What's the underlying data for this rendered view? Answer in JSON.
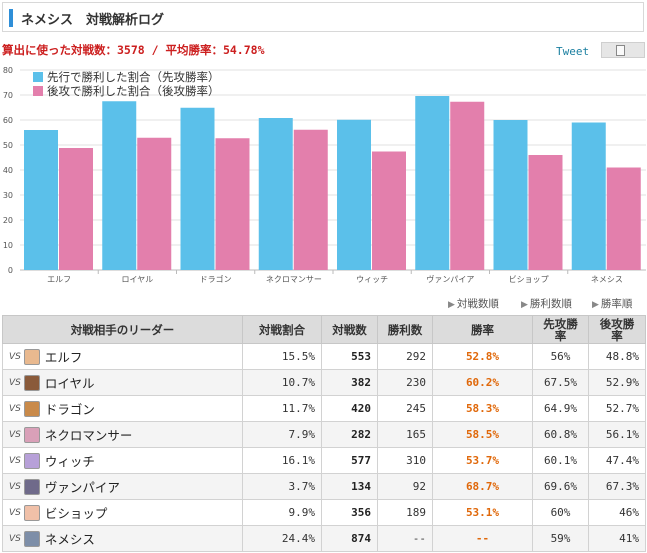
{
  "header": {
    "title": "ネメシス　対戦解析ログ"
  },
  "summary": {
    "text": "算出に使った対戦数：3578 / 平均勝率：54.78%"
  },
  "tweet": {
    "label": "Tweet"
  },
  "colors": {
    "first": "#5bc0ea",
    "second": "#e37fac",
    "accent": "#2f8fd8",
    "win": "#e0680a",
    "summary": "#cc1f1f"
  },
  "chart_data": {
    "type": "bar",
    "categories": [
      "エルフ",
      "ロイヤル",
      "ドラゴン",
      "ネクロマンサー",
      "ウィッチ",
      "ヴァンパイア",
      "ビショップ",
      "ネメシス"
    ],
    "series": [
      {
        "name": "先行で勝利した割合（先攻勝率）",
        "values": [
          56,
          67.5,
          64.9,
          60.8,
          60.1,
          69.6,
          60,
          59
        ]
      },
      {
        "name": "後攻で勝利した割合（後攻勝率）",
        "values": [
          48.8,
          52.9,
          52.7,
          56.1,
          47.4,
          67.3,
          46,
          41
        ]
      }
    ],
    "yticks": [
      "0",
      "10",
      "20",
      "30",
      "40",
      "50",
      "60",
      "70",
      "80"
    ],
    "ylim": [
      0,
      80
    ],
    "grid": true,
    "legend": "top-left"
  },
  "sort": {
    "by_count": "対戦数順",
    "by_wins": "勝利数順",
    "by_rate": "勝率順"
  },
  "table": {
    "headers": {
      "leader": "対戦相手のリーダー",
      "share": "対戦割合",
      "matches": "対戦数",
      "wins": "勝利数",
      "rate": "勝率",
      "first_rate_1": "先攻勝",
      "first_rate_2": "率",
      "second_rate_1": "後攻勝",
      "second_rate_2": "率"
    },
    "vs": "VS",
    "rows": [
      {
        "name": "エルフ",
        "share": "15.5%",
        "matches": "553",
        "wins": "292",
        "rate": "52.8%",
        "first": "56%",
        "second": "48.8%",
        "avatar": "#e9b98f"
      },
      {
        "name": "ロイヤル",
        "share": "10.7%",
        "matches": "382",
        "wins": "230",
        "rate": "60.2%",
        "first": "67.5%",
        "second": "52.9%",
        "avatar": "#8a5a3a"
      },
      {
        "name": "ドラゴン",
        "share": "11.7%",
        "matches": "420",
        "wins": "245",
        "rate": "58.3%",
        "first": "64.9%",
        "second": "52.7%",
        "avatar": "#c98a4a"
      },
      {
        "name": "ネクロマンサー",
        "share": "7.9%",
        "matches": "282",
        "wins": "165",
        "rate": "58.5%",
        "first": "60.8%",
        "second": "56.1%",
        "avatar": "#d9a0b8"
      },
      {
        "name": "ウィッチ",
        "share": "16.1%",
        "matches": "577",
        "wins": "310",
        "rate": "53.7%",
        "first": "60.1%",
        "second": "47.4%",
        "avatar": "#b7a0d8"
      },
      {
        "name": "ヴァンパイア",
        "share": "3.7%",
        "matches": "134",
        "wins": "92",
        "rate": "68.7%",
        "first": "69.6%",
        "second": "67.3%",
        "avatar": "#6f6a8a"
      },
      {
        "name": "ビショップ",
        "share": "9.9%",
        "matches": "356",
        "wins": "189",
        "rate": "53.1%",
        "first": "60%",
        "second": "46%",
        "avatar": "#f0c0a8"
      },
      {
        "name": "ネメシス",
        "share": "24.4%",
        "matches": "874",
        "wins": "--",
        "rate": "--",
        "first": "59%",
        "second": "41%",
        "avatar": "#7d8ea8"
      }
    ]
  }
}
